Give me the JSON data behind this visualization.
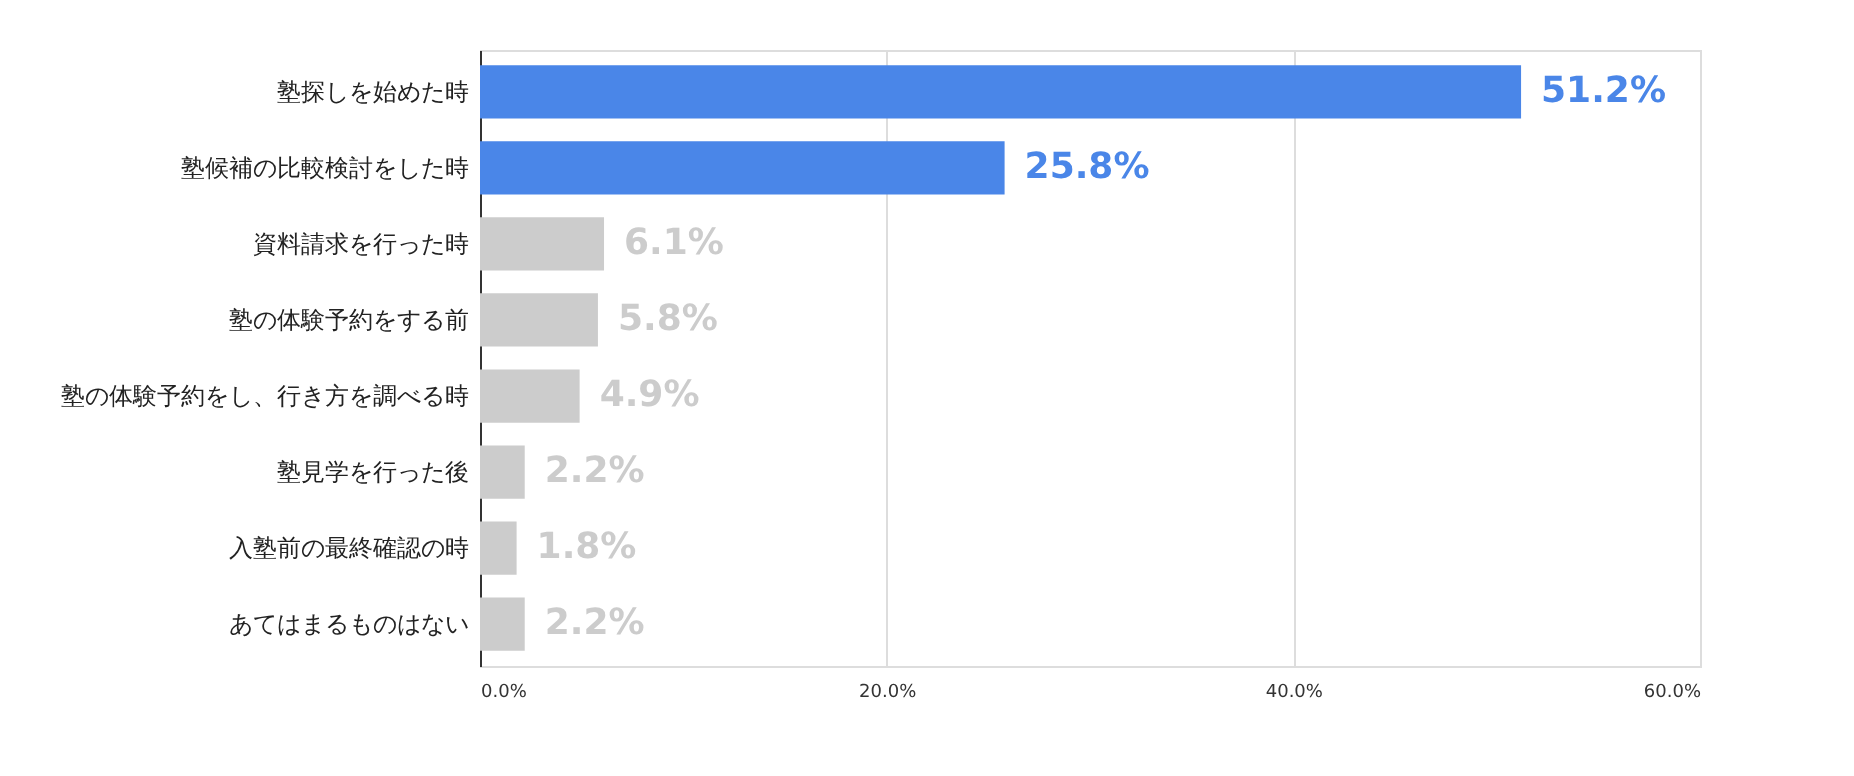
{
  "chart_data": {
    "type": "bar",
    "orientation": "horizontal",
    "categories": [
      "塾探しを始めた時",
      "塾候補の比較検討をした時",
      "資料請求を行った時",
      "塾の体験予約をする前",
      "塾の体験予約をし、行き方を調べる時",
      "塾見学を行った後",
      "入塾前の最終確認の時",
      "あてはまるものはない"
    ],
    "values": [
      51.2,
      25.8,
      6.1,
      5.8,
      4.9,
      2.2,
      1.8,
      2.2
    ],
    "colors": [
      "#4a86e8",
      "#4a86e8",
      "#cccccc",
      "#cccccc",
      "#cccccc",
      "#cccccc",
      "#cccccc",
      "#cccccc"
    ],
    "value_labels": [
      "51.2%",
      "25.8%",
      "6.1%",
      "5.8%",
      "4.9%",
      "2.2%",
      "1.8%",
      "2.2%"
    ],
    "xlim": [
      0,
      60
    ],
    "xticks": [
      {
        "value": 0,
        "label": "0.0%"
      },
      {
        "value": 20,
        "label": "20.0%"
      },
      {
        "value": 40,
        "label": "40.0%"
      },
      {
        "value": 60,
        "label": "60.0%"
      }
    ],
    "grid": "x"
  }
}
